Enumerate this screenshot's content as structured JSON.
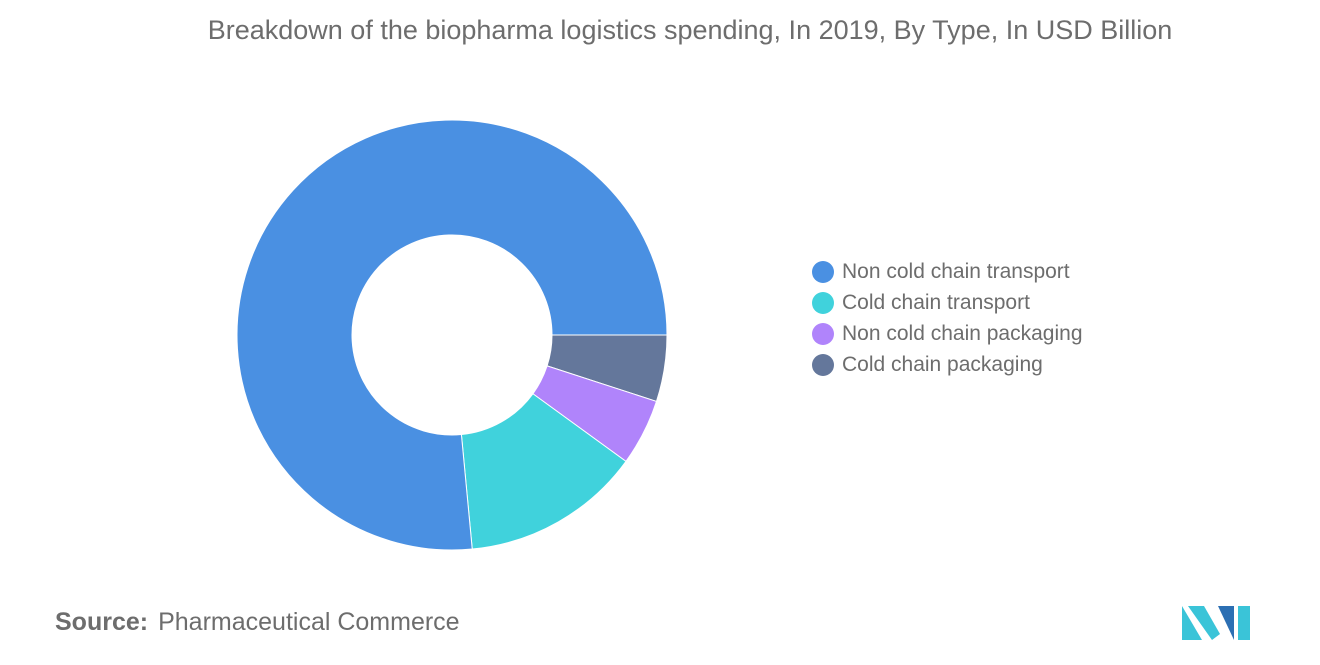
{
  "source": {
    "label": "Source:",
    "value": "Pharmaceutical Commerce"
  },
  "brand": {
    "logo_icon": "mordor-intelligence-logo-icon",
    "colors": [
      "#3ac4d8",
      "#2c6fb3"
    ]
  },
  "chart_data": {
    "type": "pie",
    "variant": "donut",
    "title": "Breakdown of the biopharma logistics spending, In 2019, By Type, In USD Billion",
    "legend_position": "right",
    "categories": [
      "Non cold chain transport",
      "Cold chain transport",
      "Non cold chain packaging",
      "Cold chain packaging"
    ],
    "values": [
      76.5,
      13.5,
      5.0,
      5.0
    ],
    "colors": [
      "#4a90e2",
      "#40d2dc",
      "#b084fb",
      "#64779b"
    ]
  }
}
